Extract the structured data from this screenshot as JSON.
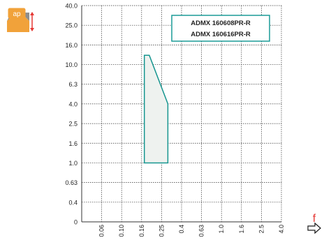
{
  "chart_data": {
    "type": "area",
    "title": "",
    "ylabel_badge": "ap",
    "xlabel_symbol": "f",
    "y_ticks": [
      "40.0",
      "25.0",
      "16.0",
      "10.0",
      "6.3",
      "4.0",
      "2.5",
      "1.6",
      "1.0",
      "0.63",
      "0.4",
      "0"
    ],
    "x_ticks": [
      "0.06",
      "0.10",
      "0.16",
      "0.25",
      "0.4",
      "0.63",
      "1.0",
      "1.6",
      "2.5",
      "4.0"
    ],
    "legend": [
      "ADMX 160608PR-R",
      "ADMX 160616PR-R"
    ],
    "region": {
      "name": "",
      "points": [
        {
          "f": 0.17,
          "ap": 1.0
        },
        {
          "f": 0.17,
          "ap": 12.5
        },
        {
          "f": 0.19,
          "ap": 12.5
        },
        {
          "f": 0.29,
          "ap": 4.0
        },
        {
          "f": 0.29,
          "ap": 1.0
        }
      ]
    },
    "grid": true,
    "legend_placement": "top-right",
    "scale": "log-like categorical",
    "colors": {
      "region_fill": "#eef2ef",
      "region_stroke": "#15958f",
      "legend_border": "#1a9b97",
      "badge": "#f1a23a",
      "badge_text": "#ffffff",
      "f_label": "#e53935",
      "arrow": "#1a1a1a",
      "axis": "#333333",
      "grid": "#333333"
    }
  }
}
